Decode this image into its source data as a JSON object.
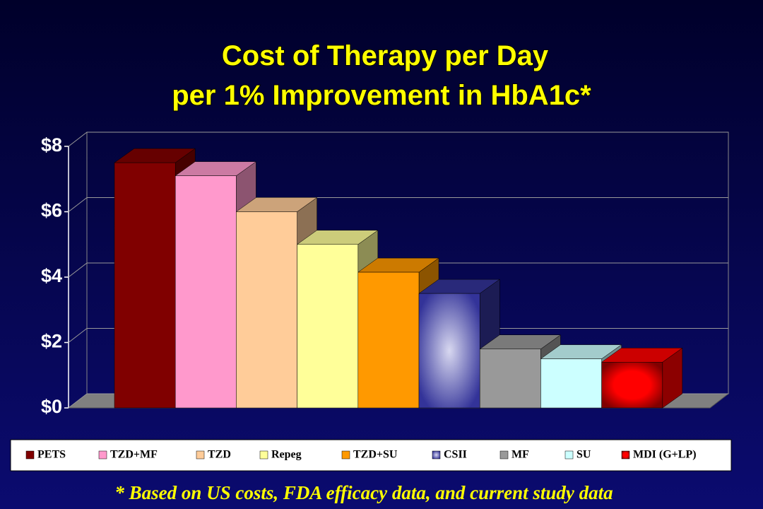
{
  "chart_data": {
    "type": "bar3d",
    "title": [
      "Cost of Therapy per Day",
      "per 1% Improvement in HbA1c*"
    ],
    "categories": [
      "PETS",
      "TZD+MF",
      "TZD",
      "Repeg",
      "TZD+SU",
      "CSII",
      "MF",
      "SU",
      "MDI (G+LP)"
    ],
    "values": [
      7.5,
      7.1,
      6.0,
      5.0,
      4.15,
      3.5,
      1.8,
      1.5,
      1.4
    ],
    "colors": [
      "#800000",
      "#ff99cc",
      "#ffcc99",
      "#ffff99",
      "#ff9900",
      "#333399",
      "#999999",
      "#ccffff",
      "#ff0000"
    ],
    "ylim": [
      0,
      8
    ],
    "yticks": [
      {
        "value": 0,
        "label": "$0"
      },
      {
        "value": 2,
        "label": "$2"
      },
      {
        "value": 4,
        "label": "$4"
      },
      {
        "value": 6,
        "label": "$6"
      },
      {
        "value": 8,
        "label": "$8"
      }
    ],
    "grid": true,
    "legend": "bottom",
    "footnote": "* Based on US costs, FDA efficacy data, and current study data"
  }
}
